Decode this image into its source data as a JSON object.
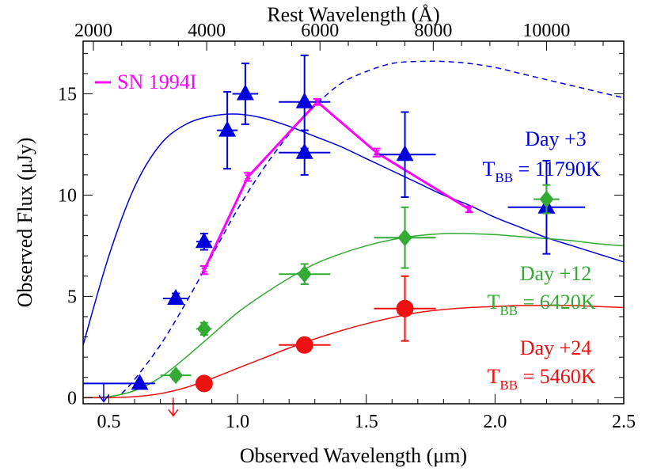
{
  "chart_data": {
    "type": "scatter",
    "xlabel": "Observed Wavelength (μm)",
    "ylabel": "Observed Flux (μJy)",
    "top_xlabel": "Rest Wavelength (Å)",
    "xlim": [
      0.4,
      2.5
    ],
    "ylim": [
      -0.3,
      17.6
    ],
    "x_ticks": [
      0.5,
      1.0,
      1.5,
      2.0,
      2.5
    ],
    "x_tick_labels": [
      "0.5",
      "1.0",
      "1.5",
      "2.0",
      "2.5"
    ],
    "y_ticks": [
      0,
      5,
      10,
      15
    ],
    "y_tick_labels": [
      "0",
      "5",
      "10",
      "15"
    ],
    "top_x_ticks": [
      2000,
      4000,
      6000,
      8000,
      10000
    ],
    "top_x_tick_labels": [
      "2000",
      "4000",
      "6000",
      "8000",
      "10000"
    ],
    "top_axis_scale": 0.22,
    "legend": {
      "label": "SN 1994I",
      "color": "#ff00ff",
      "position": "top-left"
    },
    "colors": {
      "day3": "#0000dd",
      "day12": "#33aa33",
      "day24": "#ee1111",
      "sn1994i": "#ff00ff"
    },
    "annotations": [
      {
        "line1": "Day +3",
        "temp_prefix": "T",
        "temp_sub": "BB",
        "temp_value": " = 11790K",
        "color": "#0000dd"
      },
      {
        "line1": "Day +12",
        "temp_prefix": "T",
        "temp_sub": "BB",
        "temp_value": " = 6420K",
        "color": "#33aa33"
      },
      {
        "line1": "Day +24",
        "temp_prefix": "T",
        "temp_sub": "BB",
        "temp_value": " = 5460K",
        "color": "#ee1111"
      }
    ],
    "series": [
      {
        "name": "Day +3",
        "marker": "triangle",
        "color": "#0000dd",
        "points": [
          {
            "x": 0.62,
            "y": 0.7,
            "xerr": 0.06,
            "yerr": 0
          },
          {
            "x": 0.76,
            "y": 4.9,
            "xerr": 0.05,
            "yerr": 0.25
          },
          {
            "x": 0.87,
            "y": 7.7,
            "xerr": 0.03,
            "yerr": 0.4
          },
          {
            "x": 0.96,
            "y": 13.2,
            "xerr": 0.04,
            "yerr": 1.9
          },
          {
            "x": 1.03,
            "y": 15.0,
            "xerr": 0.05,
            "yerr": 1.5
          },
          {
            "x": 1.26,
            "y": 14.6,
            "xerr": 0.1,
            "yerr": 2.3
          },
          {
            "x": 1.26,
            "y": 12.1,
            "xerr": 0.1,
            "yerr": 1.1
          },
          {
            "x": 1.65,
            "y": 12.0,
            "xerr": 0.12,
            "yerr": 2.1
          },
          {
            "x": 2.2,
            "y": 9.4,
            "xerr": 0.15,
            "yerr": 2.3
          }
        ],
        "upper_limits": [
          {
            "x": 0.48,
            "y": 0.7,
            "xerr": 0.08
          }
        ]
      },
      {
        "name": "Day +12",
        "marker": "diamond",
        "color": "#33aa33",
        "points": [
          {
            "x": 0.76,
            "y": 1.1,
            "xerr": 0.06,
            "yerr": 0.2
          },
          {
            "x": 0.87,
            "y": 3.4,
            "xerr": 0.03,
            "yerr": 0.3
          },
          {
            "x": 1.26,
            "y": 6.1,
            "xerr": 0.1,
            "yerr": 0.5
          },
          {
            "x": 1.65,
            "y": 7.9,
            "xerr": 0.12,
            "yerr": 1.5
          },
          {
            "x": 2.2,
            "y": 9.8,
            "xerr": 0.05,
            "yerr": 0.7
          }
        ]
      },
      {
        "name": "Day +24",
        "marker": "circle",
        "color": "#ee1111",
        "points": [
          {
            "x": 0.87,
            "y": 0.7,
            "xerr": 0,
            "yerr": 0
          },
          {
            "x": 1.26,
            "y": 2.6,
            "xerr": 0.1,
            "yerr": 0.3
          },
          {
            "x": 1.65,
            "y": 4.4,
            "xerr": 0.12,
            "yerr": 1.6
          }
        ],
        "upper_limits": [
          {
            "x": 0.75,
            "y": 0.0,
            "xerr": 0
          }
        ]
      },
      {
        "name": "SN 1994I",
        "marker": "line-x",
        "color": "#ff00ff",
        "points": [
          {
            "x": 0.87,
            "y": 6.3,
            "yerr": 0.2
          },
          {
            "x": 1.04,
            "y": 10.9,
            "yerr": 0.2
          },
          {
            "x": 1.31,
            "y": 14.6,
            "yerr": 0.15
          },
          {
            "x": 1.54,
            "y": 12.1,
            "yerr": 0.2
          },
          {
            "x": 1.9,
            "y": 9.3,
            "yerr": 0.15
          }
        ]
      }
    ],
    "model_curves": [
      {
        "name": "Day +3 blackbody",
        "color": "#0000dd",
        "dash": false,
        "x": [
          0.4,
          0.5,
          0.6,
          0.7,
          0.8,
          0.9,
          1.0,
          1.1,
          1.2,
          1.3,
          1.4,
          1.5,
          1.6,
          1.7,
          1.8,
          1.9,
          2.0,
          2.1,
          2.2,
          2.3,
          2.4,
          2.5
        ],
        "y": [
          2.6,
          7.0,
          10.4,
          12.5,
          13.5,
          13.9,
          14.0,
          13.8,
          13.4,
          12.9,
          12.4,
          11.8,
          11.2,
          10.6,
          10.0,
          9.5,
          8.9,
          8.4,
          7.9,
          7.5,
          7.1,
          6.7
        ]
      },
      {
        "name": "Day +3 dashed",
        "color": "#0000dd",
        "dash": true,
        "x": [
          0.55,
          0.6,
          0.7,
          0.8,
          0.9,
          1.0,
          1.1,
          1.2,
          1.3,
          1.4,
          1.5,
          1.6,
          1.7,
          1.8,
          1.9,
          2.0,
          2.1,
          2.2,
          2.3,
          2.4,
          2.5
        ],
        "y": [
          0.2,
          0.9,
          2.6,
          4.7,
          7.0,
          9.3,
          11.3,
          13.0,
          14.4,
          15.5,
          16.1,
          16.5,
          16.6,
          16.6,
          16.5,
          16.3,
          16.0,
          15.7,
          15.4,
          15.1,
          14.8
        ]
      },
      {
        "name": "Day +12 blackbody",
        "color": "#33aa33",
        "dash": false,
        "x": [
          0.4,
          0.5,
          0.6,
          0.7,
          0.8,
          0.9,
          1.0,
          1.1,
          1.2,
          1.3,
          1.4,
          1.5,
          1.6,
          1.7,
          1.8,
          1.9,
          2.0,
          2.1,
          2.2,
          2.3,
          2.4,
          2.5
        ],
        "y": [
          0.0,
          0.05,
          0.35,
          1.0,
          2.0,
          3.1,
          4.2,
          5.1,
          5.9,
          6.6,
          7.1,
          7.5,
          7.8,
          8.0,
          8.1,
          8.1,
          8.05,
          7.95,
          7.85,
          7.75,
          7.6,
          7.5
        ]
      },
      {
        "name": "Day +24 blackbody",
        "color": "#ee1111",
        "dash": false,
        "x": [
          0.4,
          0.5,
          0.6,
          0.7,
          0.8,
          0.9,
          1.0,
          1.1,
          1.2,
          1.3,
          1.4,
          1.5,
          1.6,
          1.7,
          1.8,
          1.9,
          2.0,
          2.1,
          2.2,
          2.3,
          2.4,
          2.5
        ],
        "y": [
          0.0,
          0.0,
          0.05,
          0.2,
          0.5,
          0.95,
          1.45,
          1.95,
          2.45,
          2.9,
          3.3,
          3.65,
          3.95,
          4.2,
          4.35,
          4.45,
          4.5,
          4.55,
          4.55,
          4.55,
          4.5,
          4.45
        ]
      }
    ]
  }
}
